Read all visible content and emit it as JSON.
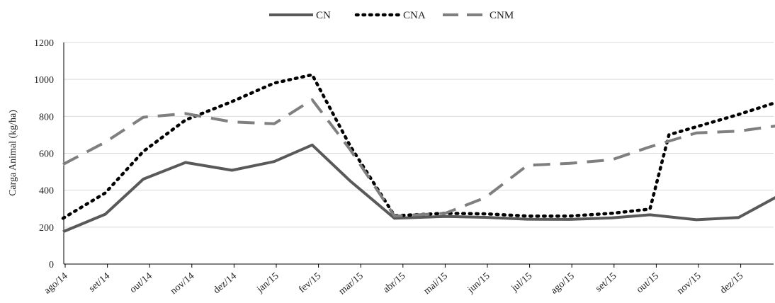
{
  "chart_data": {
    "type": "line",
    "title": "",
    "xlabel": "",
    "ylabel": "Carga Animal (kg/ha)",
    "ylim": [
      0,
      1200
    ],
    "yticks": [
      0,
      200,
      400,
      600,
      800,
      1000,
      1200
    ],
    "grid": true,
    "legend_position": "top-center",
    "categories": [
      "ago/14",
      "set/14",
      "out/14",
      "nov/14",
      "dez/14",
      "jan/15",
      "fev/15",
      "mar/15",
      "abr/15",
      "mai/15",
      "jun/15",
      "jul/15",
      "ago/15",
      "set/15",
      "out/15",
      "nov/15",
      "dez/15"
    ],
    "x": [
      0,
      1,
      2,
      3,
      4,
      5,
      6,
      7,
      8,
      9,
      10,
      11,
      12,
      13,
      14,
      15,
      16
    ],
    "series": [
      {
        "name": "CN",
        "color": "#595959",
        "style": "solid",
        "x": [
          -0.05,
          0.95,
          1.85,
          2.85,
          3.95,
          4.95,
          5.85,
          6.75,
          7.8,
          9.0,
          9.95,
          10.95,
          11.95,
          12.95,
          13.85,
          14.95,
          15.95,
          16.9
        ],
        "values": [
          175,
          270,
          460,
          550,
          508,
          555,
          645,
          450,
          248,
          258,
          253,
          243,
          242,
          250,
          267,
          240,
          252,
          370
        ]
      },
      {
        "name": "CNA",
        "color": "#000000",
        "style": "dotted",
        "x": [
          -0.05,
          0.95,
          1.85,
          2.85,
          3.95,
          4.95,
          5.85,
          6.75,
          7.8,
          9.0,
          9.95,
          10.95,
          11.95,
          12.95,
          13.85,
          14.3,
          15.95,
          16.9
        ],
        "values": [
          248,
          385,
          610,
          780,
          880,
          980,
          1025,
          640,
          262,
          275,
          272,
          260,
          260,
          275,
          298,
          700,
          810,
          880
        ]
      },
      {
        "name": "CNM",
        "color": "#7f7f7f",
        "style": "dashed",
        "x": [
          -0.05,
          0.95,
          1.85,
          2.85,
          3.95,
          4.95,
          5.85,
          6.75,
          7.8,
          9.0,
          9.95,
          10.95,
          11.95,
          12.95,
          13.85,
          14.95,
          15.95,
          16.9
        ],
        "values": [
          540,
          660,
          795,
          815,
          770,
          760,
          890,
          620,
          260,
          275,
          360,
          535,
          545,
          565,
          635,
          710,
          720,
          750
        ]
      }
    ]
  }
}
